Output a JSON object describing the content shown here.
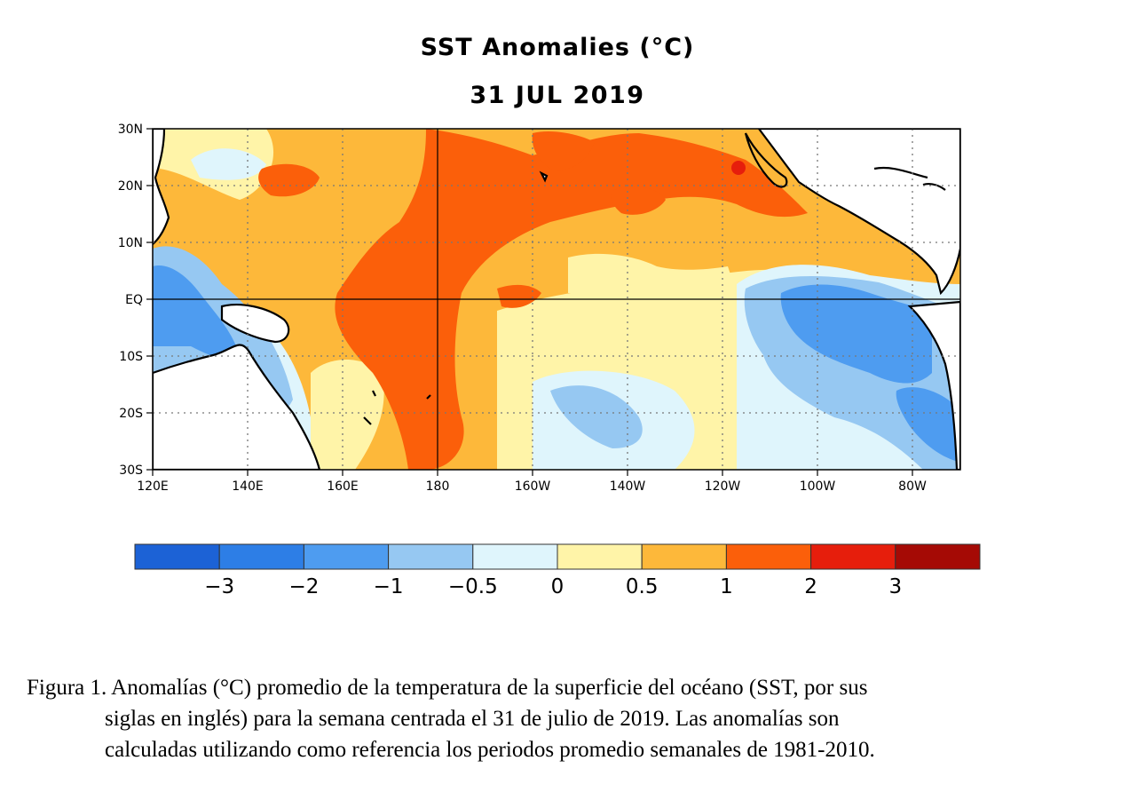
{
  "figure": {
    "title": "SST Anomalies (°C)",
    "date": "31 JUL 2019",
    "caption_line1": "Figura 1. Anomalías (°C) promedio de la temperatura de la superficie del océano (SST, por sus",
    "caption_line2": "siglas en inglés) para la semana centrada el 31 de julio de 2019. Las anomalías son",
    "caption_line3": "calculadas utilizando como referencia los periodos promedio semanales de 1981-2010."
  },
  "map": {
    "lat_labels": [
      "30N",
      "20N",
      "10N",
      "EQ",
      "10S",
      "20S",
      "30S"
    ],
    "lon_labels": [
      "120E",
      "140E",
      "160E",
      "180",
      "160W",
      "140W",
      "120W",
      "100W",
      "80W"
    ],
    "land_color": "#ffffff",
    "grid": "dotted"
  },
  "colorbar": {
    "colors": [
      "#1c62d6",
      "#2d7ee6",
      "#4e9cf0",
      "#96c8f2",
      "#dff5fc",
      "#fff4a8",
      "#fdb83a",
      "#fb5f0a",
      "#e61e0c",
      "#a50a05"
    ],
    "tick_labels": [
      "−3",
      "−2",
      "−1",
      "−0.5",
      "0",
      "0.5",
      "1",
      "2",
      "3"
    ]
  }
}
